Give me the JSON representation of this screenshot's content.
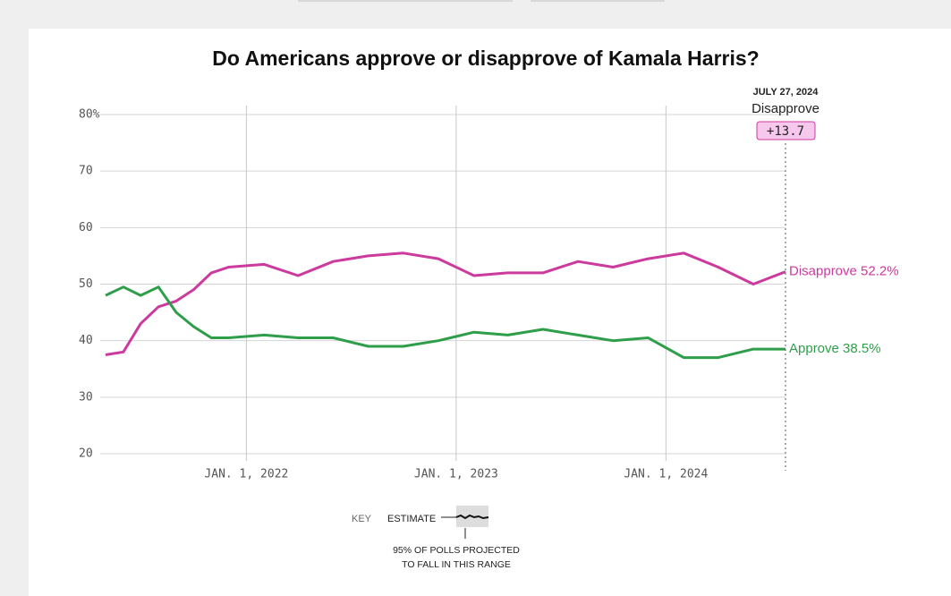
{
  "chart_data": {
    "type": "line",
    "title": "Do Americans approve or disapprove of Kamala Harris?",
    "x": [
      "2021-05-01",
      "2021-06-01",
      "2021-07-01",
      "2021-08-01",
      "2021-09-01",
      "2021-10-01",
      "2021-11-01",
      "2021-12-01",
      "2022-02-01",
      "2022-04-01",
      "2022-06-01",
      "2022-08-01",
      "2022-10-01",
      "2022-12-01",
      "2023-02-01",
      "2023-04-01",
      "2023-06-01",
      "2023-08-01",
      "2023-10-01",
      "2023-12-01",
      "2024-02-01",
      "2024-04-01",
      "2024-06-01",
      "2024-07-27"
    ],
    "series": [
      {
        "name": "Disapprove",
        "color": "#cc3a9e",
        "end_label": "Disapprove 52.2%",
        "values": [
          37.5,
          38,
          43,
          46,
          47,
          49,
          52,
          53,
          53.5,
          51.5,
          54,
          55,
          55.5,
          54.5,
          51.5,
          52,
          52,
          54,
          53,
          54.5,
          55.5,
          53,
          50,
          52.2
        ]
      },
      {
        "name": "Approve",
        "color": "#2f9e4a",
        "end_label": "Approve 38.5%",
        "values": [
          48,
          49.5,
          48,
          49.5,
          45,
          42.5,
          40.5,
          40.5,
          41,
          40.5,
          40.5,
          39,
          39,
          40,
          41.5,
          41,
          42,
          41,
          40,
          40.5,
          37,
          37,
          38.5,
          38.5
        ]
      }
    ],
    "xlim": [
      "2021-05-01",
      "2024-07-27"
    ],
    "xticks": [
      {
        "value": "2022-01-01",
        "label": "JAN. 1, 2022"
      },
      {
        "value": "2023-01-01",
        "label": "JAN. 1, 2023"
      },
      {
        "value": "2024-01-01",
        "label": "JAN. 1, 2024"
      }
    ],
    "ylim": [
      20,
      80
    ],
    "yticks": [
      {
        "value": 80,
        "label": "80%"
      },
      70,
      60,
      50,
      40,
      30,
      20
    ],
    "grid": true,
    "annotation": {
      "date": "JULY 27, 2024",
      "leader": "Disapprove",
      "margin": "+13.7"
    },
    "key": {
      "title": "KEY",
      "estimate": "ESTIMATE",
      "range_line1": "95% OF POLLS PROJECTED",
      "range_line2": "TO FALL IN THIS RANGE"
    }
  }
}
